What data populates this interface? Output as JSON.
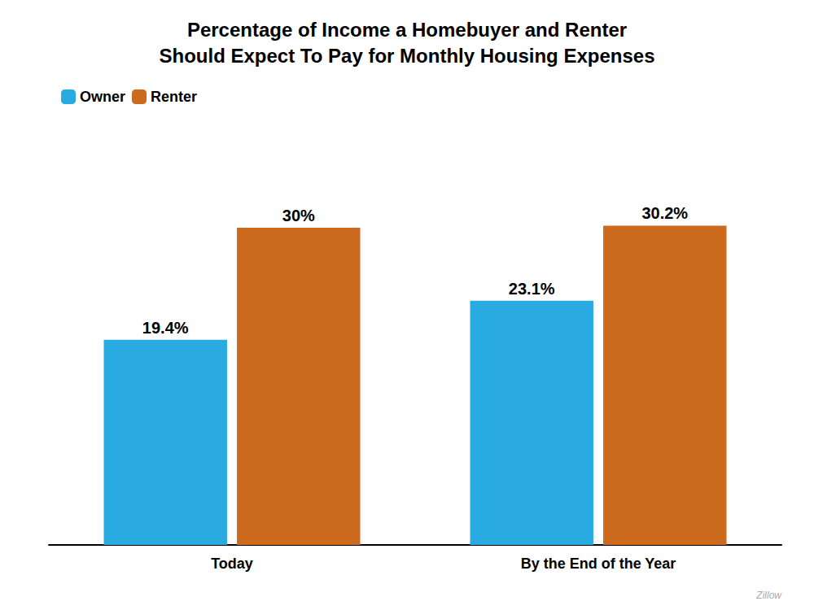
{
  "chart_data": {
    "type": "bar",
    "title": "Percentage of Income a Homebuyer and Renter\nShould Expect To Pay for Monthly Housing Expenses",
    "categories": [
      "Today",
      "By the End of the Year"
    ],
    "series": [
      {
        "name": "Owner",
        "color": "#29ABE2",
        "values": [
          19.4,
          23.1
        ],
        "value_labels": [
          "19.4%",
          "23.1%"
        ]
      },
      {
        "name": "Renter",
        "color": "#CC6A1E",
        "values": [
          30.0,
          30.2
        ],
        "value_labels": [
          "30%",
          "30.2%"
        ]
      }
    ],
    "ylim": [
      0,
      40
    ],
    "data_labels": true,
    "tick_labels": "x",
    "grid": false,
    "legend": "upper left",
    "annotations": [
      "Zillow"
    ]
  }
}
